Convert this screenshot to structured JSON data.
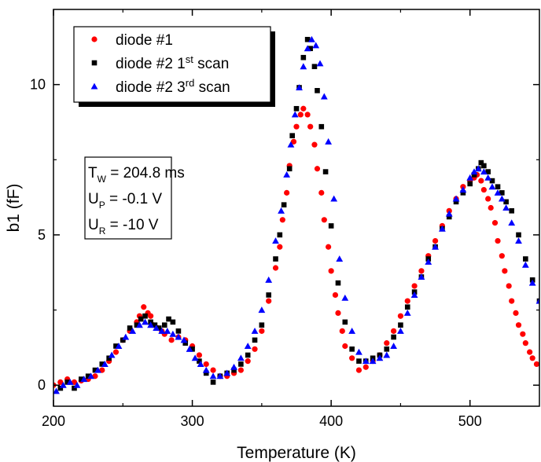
{
  "chart_data": {
    "type": "scatter",
    "xlabel": "Temperature (K)",
    "ylabel": "b1 (fF)",
    "xlim": [
      200,
      550
    ],
    "ylim": [
      -0.7,
      12.5
    ],
    "xticks": [
      200,
      300,
      400,
      500
    ],
    "yticks": [
      0,
      5,
      10
    ],
    "legend_position": "top-left",
    "annotation": [
      {
        "main": "T",
        "sub": "W",
        "rest": " = 204.8 ms"
      },
      {
        "main": "U",
        "sub": "P",
        "rest": " = -0.1 V"
      },
      {
        "main": "U",
        "sub": "R",
        "rest": " = -10 V"
      }
    ],
    "series": [
      {
        "name": "diode #1",
        "label_parts": {
          "base": "diode #1",
          "sup": "",
          "tail": ""
        },
        "marker": "circle",
        "color": "#ff0000",
        "x": [
          200,
          205,
          210,
          215,
          220,
          225,
          230,
          235,
          240,
          245,
          250,
          255,
          260,
          262,
          265,
          268,
          270,
          272,
          275,
          278,
          280,
          285,
          290,
          295,
          300,
          305,
          310,
          315,
          320,
          325,
          330,
          335,
          340,
          345,
          350,
          355,
          360,
          363,
          365,
          368,
          370,
          373,
          375,
          378,
          380,
          383,
          385,
          388,
          390,
          393,
          395,
          398,
          400,
          403,
          405,
          408,
          410,
          415,
          420,
          425,
          430,
          435,
          440,
          445,
          450,
          455,
          460,
          465,
          470,
          475,
          480,
          485,
          490,
          495,
          500,
          503,
          505,
          508,
          510,
          513,
          515,
          518,
          520,
          523,
          525,
          528,
          530,
          533,
          535,
          538,
          540,
          543,
          545,
          548
        ],
        "y": [
          0.0,
          0.1,
          0.2,
          0.1,
          0.15,
          0.2,
          0.3,
          0.5,
          0.8,
          1.1,
          1.5,
          1.8,
          2.1,
          2.3,
          2.6,
          2.4,
          2.3,
          2.0,
          1.9,
          1.8,
          1.7,
          1.5,
          1.6,
          1.5,
          1.3,
          1.0,
          0.7,
          0.5,
          0.3,
          0.3,
          0.4,
          0.5,
          0.8,
          1.2,
          1.8,
          2.8,
          3.9,
          4.6,
          5.5,
          6.4,
          7.3,
          8.1,
          8.6,
          9.0,
          9.2,
          9.0,
          8.6,
          8.0,
          7.2,
          6.4,
          5.5,
          4.6,
          3.8,
          3.0,
          2.4,
          1.8,
          1.3,
          0.9,
          0.5,
          0.6,
          0.8,
          1.0,
          1.4,
          1.8,
          2.3,
          2.8,
          3.3,
          3.8,
          4.3,
          4.8,
          5.3,
          5.8,
          6.2,
          6.6,
          6.8,
          6.9,
          7.0,
          6.8,
          6.5,
          6.2,
          5.9,
          5.4,
          4.8,
          4.3,
          3.8,
          3.3,
          2.8,
          2.4,
          2.0,
          1.7,
          1.4,
          1.1,
          0.9,
          0.7
        ]
      },
      {
        "name": "diode #2 1st scan",
        "label_parts": {
          "base": "diode #2 1",
          "sup": "st",
          "tail": " scan"
        },
        "marker": "square",
        "color": "#000000",
        "x": [
          205,
          210,
          215,
          220,
          225,
          230,
          235,
          240,
          245,
          250,
          255,
          260,
          263,
          266,
          270,
          273,
          276,
          280,
          283,
          286,
          290,
          295,
          300,
          305,
          310,
          315,
          320,
          325,
          330,
          335,
          340,
          345,
          350,
          355,
          360,
          363,
          366,
          370,
          372,
          375,
          377,
          380,
          383,
          385,
          388,
          390,
          393,
          396,
          400,
          405,
          410,
          415,
          420,
          425,
          430,
          435,
          440,
          445,
          450,
          455,
          460,
          465,
          470,
          475,
          480,
          485,
          490,
          495,
          500,
          503,
          506,
          508,
          510,
          513,
          516,
          520,
          523,
          526,
          530,
          535,
          540,
          545,
          550
        ],
        "y": [
          -0.1,
          0.1,
          -0.1,
          0.2,
          0.3,
          0.5,
          0.7,
          0.9,
          1.3,
          1.5,
          1.9,
          2.0,
          2.2,
          2.3,
          2.1,
          2.0,
          1.9,
          2.0,
          2.2,
          2.1,
          1.8,
          1.4,
          1.2,
          0.8,
          0.4,
          0.1,
          0.3,
          0.4,
          0.5,
          0.7,
          1.0,
          1.5,
          2.0,
          3.0,
          4.2,
          5.0,
          6.0,
          7.2,
          8.3,
          9.2,
          9.9,
          10.9,
          11.5,
          11.2,
          10.6,
          9.8,
          8.6,
          7.1,
          5.3,
          3.4,
          2.1,
          1.2,
          0.8,
          0.8,
          0.9,
          1.0,
          1.2,
          1.6,
          2.0,
          2.6,
          3.1,
          3.6,
          4.2,
          4.6,
          5.2,
          5.6,
          6.1,
          6.4,
          6.7,
          7.0,
          7.2,
          7.4,
          7.3,
          7.1,
          6.8,
          6.6,
          6.4,
          6.1,
          5.8,
          5.0,
          4.2,
          3.5,
          2.8
        ]
      },
      {
        "name": "diode #2 3rd scan",
        "label_parts": {
          "base": "diode #2 3",
          "sup": "rd",
          "tail": " scan"
        },
        "marker": "triangle",
        "color": "#0000ff",
        "x": [
          202,
          207,
          212,
          217,
          222,
          227,
          232,
          237,
          242,
          247,
          252,
          257,
          262,
          266,
          270,
          274,
          278,
          282,
          286,
          290,
          294,
          298,
          302,
          306,
          310,
          315,
          320,
          325,
          330,
          335,
          340,
          345,
          350,
          355,
          360,
          364,
          368,
          371,
          374,
          377,
          380,
          383,
          386,
          389,
          392,
          395,
          398,
          402,
          406,
          410,
          415,
          420,
          425,
          430,
          435,
          440,
          445,
          450,
          455,
          460,
          465,
          470,
          475,
          480,
          485,
          490,
          495,
          500,
          503,
          506,
          510,
          513,
          516,
          520,
          523,
          526,
          530,
          535,
          540,
          545,
          550
        ],
        "y": [
          -0.2,
          0.0,
          0.1,
          0.0,
          0.2,
          0.3,
          0.5,
          0.7,
          1.0,
          1.3,
          1.6,
          1.8,
          2.0,
          2.1,
          2.0,
          1.9,
          1.8,
          1.8,
          1.7,
          1.6,
          1.5,
          1.2,
          0.9,
          0.7,
          0.5,
          0.3,
          0.3,
          0.4,
          0.6,
          0.9,
          1.3,
          1.8,
          2.5,
          3.5,
          4.8,
          5.8,
          7.0,
          8.0,
          9.0,
          9.9,
          10.6,
          11.2,
          11.5,
          11.3,
          10.7,
          9.6,
          8.1,
          6.2,
          4.2,
          2.9,
          1.8,
          1.1,
          0.8,
          0.8,
          0.9,
          1.0,
          1.3,
          1.8,
          2.4,
          3.0,
          3.6,
          4.1,
          4.6,
          5.2,
          5.7,
          6.2,
          6.5,
          6.9,
          7.1,
          7.2,
          7.1,
          6.9,
          6.6,
          6.4,
          6.2,
          5.9,
          5.4,
          4.8,
          4.0,
          3.4,
          2.8
        ]
      }
    ]
  }
}
